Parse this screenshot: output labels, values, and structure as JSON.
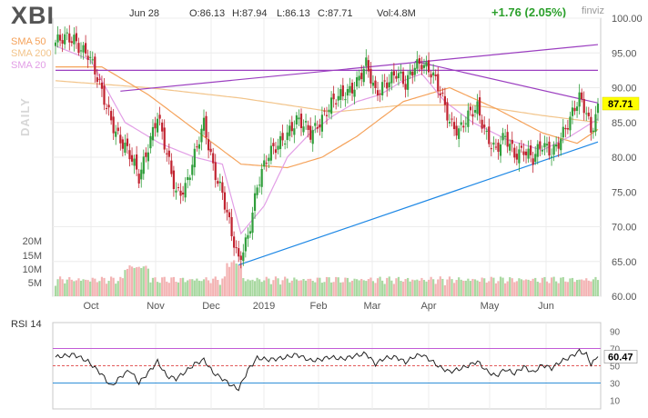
{
  "header": {
    "ticker": "XBI",
    "date": "Jun 28",
    "open": "O:86.13",
    "high": "H:87.94",
    "low": "L:86.13",
    "close": "C:87.71",
    "volume": "Vol:4.8M",
    "change": "+1.76 (2.05%)",
    "watermark": "finviz",
    "period_label": "DAILY"
  },
  "indicators": [
    {
      "label": "SMA 50",
      "color": "#f5a25a"
    },
    {
      "label": "SMA 200",
      "color": "#f2c48a"
    },
    {
      "label": "SMA 20",
      "color": "#e29ee6"
    }
  ],
  "chart_data": {
    "type": "candlestick",
    "x_labels": [
      "Oct",
      "Nov",
      "Dec",
      "2019",
      "Feb",
      "Mar",
      "Apr",
      "May",
      "Jun"
    ],
    "y_ticks": [
      "100.00",
      "95.00",
      "90.00",
      "85.00",
      "80.00",
      "75.00",
      "70.00",
      "65.00",
      "60.00"
    ],
    "ylim": [
      60,
      100
    ],
    "volume_ticks": [
      "20M",
      "15M",
      "10M",
      "5M"
    ],
    "last_price": "87.71",
    "price_anchors": [
      [
        0,
        96.5
      ],
      [
        8,
        97.0
      ],
      [
        14,
        95.0
      ],
      [
        20,
        89.0
      ],
      [
        26,
        84.0
      ],
      [
        32,
        80.0
      ],
      [
        36,
        77.0
      ],
      [
        40,
        82.0
      ],
      [
        44,
        86.0
      ],
      [
        48,
        80.0
      ],
      [
        52,
        75.0
      ],
      [
        56,
        76.0
      ],
      [
        60,
        80.0
      ],
      [
        64,
        84.5
      ],
      [
        68,
        79.0
      ],
      [
        72,
        75.0
      ],
      [
        76,
        68.5
      ],
      [
        79,
        64.8
      ],
      [
        83,
        69.0
      ],
      [
        87,
        76.0
      ],
      [
        92,
        80.0
      ],
      [
        98,
        83.0
      ],
      [
        104,
        85.0
      ],
      [
        110,
        83.5
      ],
      [
        114,
        85.5
      ],
      [
        118,
        87.0
      ],
      [
        124,
        89.0
      ],
      [
        130,
        91.0
      ],
      [
        134,
        93.0
      ],
      [
        138,
        89.0
      ],
      [
        142,
        91.0
      ],
      [
        147,
        92.0
      ],
      [
        151,
        90.0
      ],
      [
        155,
        93.5
      ],
      [
        158,
        94.0
      ],
      [
        162,
        92.0
      ],
      [
        166,
        89.0
      ],
      [
        170,
        85.5
      ],
      [
        174,
        84.0
      ],
      [
        178,
        85.5
      ],
      [
        182,
        87.0
      ],
      [
        186,
        83.5
      ],
      [
        190,
        81.0
      ],
      [
        194,
        82.5
      ],
      [
        198,
        80.5
      ],
      [
        202,
        81.5
      ],
      [
        206,
        79.5
      ],
      [
        210,
        81.5
      ],
      [
        214,
        81.0
      ],
      [
        218,
        83.0
      ],
      [
        222,
        85.0
      ],
      [
        226,
        88.5
      ],
      [
        229,
        87.0
      ],
      [
        231,
        84.0
      ],
      [
        233,
        86.13
      ],
      [
        234,
        87.71
      ]
    ],
    "sma50_anchors": [
      [
        0,
        93
      ],
      [
        20,
        93
      ],
      [
        40,
        89
      ],
      [
        60,
        84
      ],
      [
        80,
        79
      ],
      [
        100,
        78.5
      ],
      [
        115,
        80
      ],
      [
        130,
        83
      ],
      [
        150,
        88
      ],
      [
        170,
        90
      ],
      [
        190,
        87
      ],
      [
        210,
        83.5
      ],
      [
        225,
        82
      ],
      [
        234,
        84
      ]
    ],
    "sma200_anchors": [
      [
        0,
        91
      ],
      [
        40,
        90
      ],
      [
        80,
        88.5
      ],
      [
        120,
        86.5
      ],
      [
        150,
        87.5
      ],
      [
        180,
        87.5
      ],
      [
        210,
        86
      ],
      [
        234,
        85
      ]
    ],
    "sma20_anchors": [
      [
        0,
        96
      ],
      [
        15,
        94
      ],
      [
        30,
        85
      ],
      [
        45,
        82
      ],
      [
        60,
        80
      ],
      [
        72,
        79
      ],
      [
        80,
        69
      ],
      [
        90,
        73
      ],
      [
        100,
        80
      ],
      [
        110,
        83.5
      ],
      [
        120,
        86
      ],
      [
        130,
        88
      ],
      [
        140,
        89
      ],
      [
        150,
        91
      ],
      [
        158,
        92
      ],
      [
        168,
        88
      ],
      [
        180,
        85
      ],
      [
        195,
        82.5
      ],
      [
        210,
        81
      ],
      [
        222,
        83
      ],
      [
        234,
        85.5
      ]
    ],
    "trendlines": [
      {
        "from": [
          28,
          89.5
        ],
        "to": [
          234,
          96.2
        ],
        "color": "#9b3ec0"
      },
      {
        "from": [
          155,
          93.8
        ],
        "to": [
          234,
          87.8
        ],
        "color": "#9b3ec0"
      },
      {
        "from": [
          79,
          64.5
        ],
        "to": [
          234,
          82.2
        ],
        "color": "#1e88e5"
      },
      {
        "from": [
          0,
          92.5
        ],
        "to": [
          234,
          92.5
        ],
        "color": "#9b3ec0"
      }
    ],
    "rsi": {
      "label": "RSI 14",
      "ticks": [
        "90",
        "70",
        "50",
        "30",
        "10"
      ],
      "current": "60.47",
      "ylim": [
        0,
        100
      ],
      "anchors": [
        [
          0,
          60
        ],
        [
          8,
          63
        ],
        [
          14,
          55
        ],
        [
          20,
          40
        ],
        [
          24,
          26
        ],
        [
          28,
          37
        ],
        [
          32,
          45
        ],
        [
          36,
          30
        ],
        [
          40,
          42
        ],
        [
          44,
          55
        ],
        [
          48,
          38
        ],
        [
          52,
          35
        ],
        [
          56,
          43
        ],
        [
          60,
          52
        ],
        [
          64,
          57
        ],
        [
          68,
          42
        ],
        [
          72,
          35
        ],
        [
          76,
          27
        ],
        [
          79,
          23
        ],
        [
          83,
          45
        ],
        [
          87,
          59
        ],
        [
          92,
          57
        ],
        [
          98,
          59
        ],
        [
          104,
          63
        ],
        [
          110,
          56
        ],
        [
          114,
          57
        ],
        [
          118,
          60
        ],
        [
          124,
          58
        ],
        [
          130,
          62
        ],
        [
          134,
          64
        ],
        [
          138,
          52
        ],
        [
          142,
          59
        ],
        [
          147,
          60
        ],
        [
          151,
          54
        ],
        [
          155,
          61
        ],
        [
          158,
          63
        ],
        [
          162,
          56
        ],
        [
          166,
          48
        ],
        [
          170,
          43
        ],
        [
          174,
          46
        ],
        [
          178,
          50
        ],
        [
          182,
          55
        ],
        [
          186,
          44
        ],
        [
          190,
          38
        ],
        [
          194,
          46
        ],
        [
          198,
          41
        ],
        [
          202,
          49
        ],
        [
          206,
          42
        ],
        [
          210,
          51
        ],
        [
          214,
          47
        ],
        [
          218,
          55
        ],
        [
          222,
          60
        ],
        [
          226,
          67
        ],
        [
          229,
          63
        ],
        [
          231,
          52
        ],
        [
          233,
          57
        ],
        [
          234,
          60.5
        ]
      ]
    }
  }
}
